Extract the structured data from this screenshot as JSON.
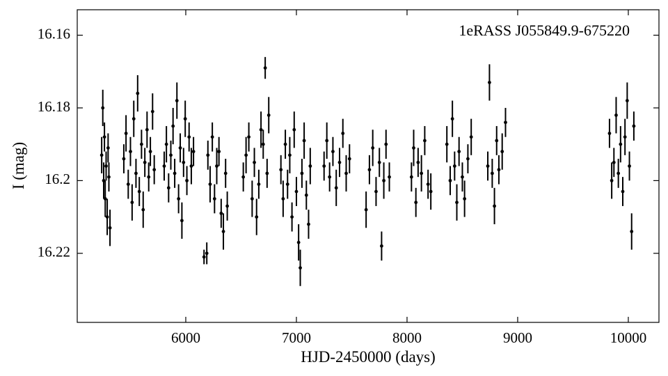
{
  "chart_data": {
    "type": "scatter",
    "annotation": "1eRASS J055849.9-675220",
    "x_label": "HJD-2450000 (days)",
    "y_label": "I (mag)",
    "xlim": [
      5019,
      10277
    ],
    "ylim": [
      16.239,
      16.153
    ],
    "xticks": [
      6000,
      7000,
      8000,
      9000,
      10000
    ],
    "yticks": [
      16.16,
      16.18,
      16.2,
      16.22
    ],
    "yticks_labels": null,
    "grid": false,
    "color": "#000000",
    "series": [
      {
        "x": [
          5240,
          5250,
          5258,
          5265,
          5272,
          5280,
          5290,
          5298,
          5305,
          5315,
          5440,
          5460,
          5480,
          5500,
          5515,
          5530,
          5550,
          5565,
          5580,
          5600,
          5615,
          5630,
          5650,
          5665,
          5680,
          5700,
          5715,
          5805,
          5825,
          5845,
          5865,
          5885,
          5900,
          5920,
          5935,
          5950,
          5965,
          5980,
          5995,
          6010,
          6030,
          6050,
          6070,
          6165,
          6190,
          6200,
          6220,
          6240,
          6260,
          6280,
          6300,
          6320,
          6340,
          6360,
          6375,
          6520,
          6545,
          6570,
          6600,
          6620,
          6640,
          6660,
          6680,
          6700,
          6718,
          6735,
          6750,
          6860,
          6880,
          6900,
          6920,
          6940,
          6960,
          6980,
          7000,
          7020,
          7035,
          7050,
          7070,
          7090,
          7110,
          7125,
          7250,
          7275,
          7300,
          7330,
          7360,
          7390,
          7420,
          7450,
          7480,
          7630,
          7660,
          7690,
          7720,
          7750,
          7770,
          7790,
          7810,
          7840,
          8040,
          8060,
          8080,
          8100,
          8130,
          8160,
          8190,
          8215,
          8360,
          8390,
          8410,
          8430,
          8450,
          8470,
          8500,
          8520,
          8550,
          8580,
          8730,
          8745,
          8770,
          8790,
          8810,
          8830,
          8860,
          8890,
          9830,
          9850,
          9870,
          9890,
          9910,
          9930,
          9950,
          9970,
          9990,
          10010,
          10030,
          10050
        ],
        "values": [
          16.193,
          16.18,
          16.2,
          16.188,
          16.205,
          16.196,
          16.21,
          16.191,
          16.199,
          16.213,
          16.194,
          16.187,
          16.201,
          16.192,
          16.206,
          16.183,
          16.198,
          16.176,
          16.203,
          16.19,
          16.208,
          16.195,
          16.186,
          16.199,
          16.192,
          16.181,
          16.197,
          16.196,
          16.19,
          16.202,
          16.193,
          16.185,
          16.198,
          16.178,
          16.205,
          16.191,
          16.211,
          16.195,
          16.183,
          16.2,
          16.188,
          16.196,
          16.192,
          16.221,
          16.22,
          16.193,
          16.201,
          16.188,
          16.205,
          16.196,
          16.192,
          16.209,
          16.214,
          16.198,
          16.207,
          16.199,
          16.193,
          16.188,
          16.205,
          16.195,
          16.21,
          16.201,
          16.186,
          16.19,
          16.169,
          16.198,
          16.182,
          16.197,
          16.205,
          16.19,
          16.201,
          16.193,
          16.21,
          16.186,
          16.203,
          16.217,
          16.224,
          16.198,
          16.189,
          16.204,
          16.212,
          16.196,
          16.196,
          16.189,
          16.199,
          16.192,
          16.202,
          16.195,
          16.187,
          16.198,
          16.194,
          16.208,
          16.197,
          16.191,
          16.203,
          16.195,
          16.218,
          16.2,
          16.19,
          16.199,
          16.199,
          16.191,
          16.206,
          16.195,
          16.198,
          16.189,
          16.201,
          16.203,
          16.19,
          16.2,
          16.183,
          16.196,
          16.206,
          16.192,
          16.199,
          16.205,
          16.194,
          16.188,
          16.196,
          16.173,
          16.198,
          16.207,
          16.189,
          16.197,
          16.192,
          16.184,
          16.187,
          16.2,
          16.195,
          16.182,
          16.198,
          16.19,
          16.203,
          16.188,
          16.178,
          16.196,
          16.214,
          16.185
        ],
        "errors": [
          0.005,
          0.005,
          0.005,
          0.004,
          0.005,
          0.004,
          0.005,
          0.004,
          0.004,
          0.005,
          0.004,
          0.005,
          0.004,
          0.004,
          0.005,
          0.005,
          0.004,
          0.005,
          0.004,
          0.004,
          0.005,
          0.004,
          0.005,
          0.004,
          0.004,
          0.005,
          0.004,
          0.004,
          0.005,
          0.004,
          0.004,
          0.005,
          0.004,
          0.005,
          0.004,
          0.004,
          0.005,
          0.004,
          0.005,
          0.004,
          0.004,
          0.005,
          0.004,
          0.002,
          0.003,
          0.004,
          0.005,
          0.004,
          0.004,
          0.005,
          0.004,
          0.004,
          0.005,
          0.004,
          0.004,
          0.004,
          0.005,
          0.004,
          0.005,
          0.004,
          0.005,
          0.004,
          0.005,
          0.004,
          0.003,
          0.004,
          0.005,
          0.004,
          0.005,
          0.004,
          0.004,
          0.005,
          0.004,
          0.005,
          0.004,
          0.005,
          0.005,
          0.004,
          0.005,
          0.004,
          0.004,
          0.005,
          0.004,
          0.005,
          0.004,
          0.004,
          0.005,
          0.004,
          0.004,
          0.005,
          0.004,
          0.005,
          0.004,
          0.005,
          0.004,
          0.004,
          0.004,
          0.005,
          0.004,
          0.004,
          0.004,
          0.005,
          0.004,
          0.004,
          0.005,
          0.004,
          0.004,
          0.005,
          0.005,
          0.004,
          0.005,
          0.004,
          0.005,
          0.004,
          0.004,
          0.005,
          0.004,
          0.005,
          0.004,
          0.005,
          0.004,
          0.005,
          0.004,
          0.004,
          0.005,
          0.004,
          0.004,
          0.005,
          0.004,
          0.005,
          0.004,
          0.005,
          0.004,
          0.005,
          0.005,
          0.004,
          0.005,
          0.004
        ]
      }
    ]
  }
}
